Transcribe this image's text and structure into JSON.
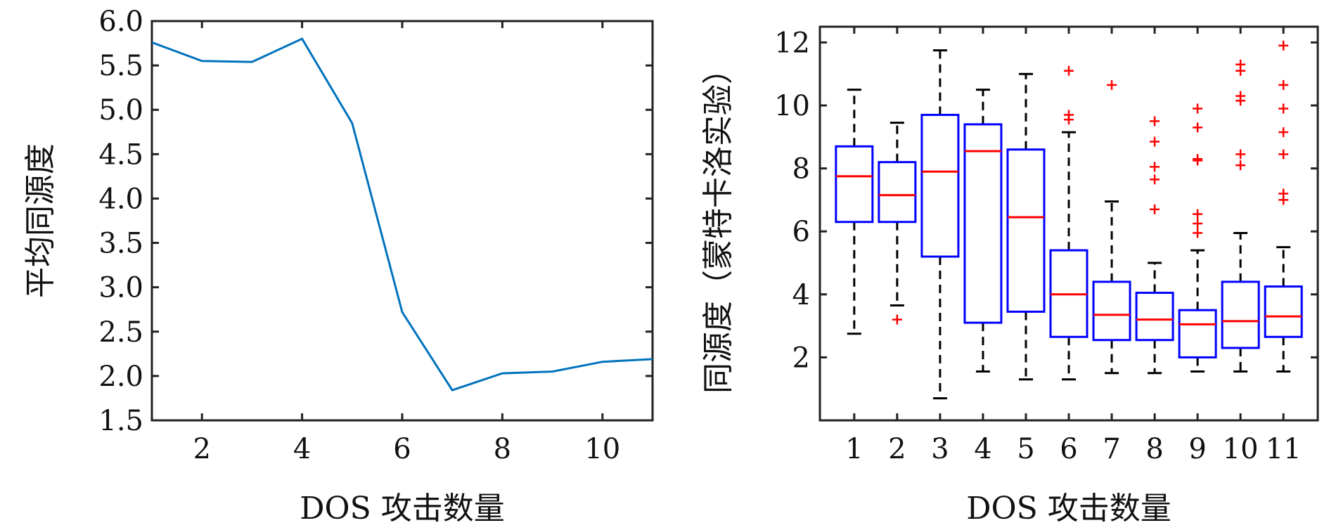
{
  "chart_data": [
    {
      "type": "line",
      "xlabel": "DOS 攻击数量",
      "ylabel": "平均同源度",
      "xlim": [
        1,
        11
      ],
      "ylim": [
        1.5,
        6.0
      ],
      "xticks": [
        2,
        4,
        6,
        8,
        10
      ],
      "yticks": [
        "1.5",
        "2.0",
        "2.5",
        "3.0",
        "3.5",
        "4.0",
        "4.5",
        "5.0",
        "5.5",
        "6.0"
      ],
      "grid": false,
      "line_color": "#0072BD",
      "x": [
        1,
        2,
        3,
        4,
        5,
        6,
        7,
        8,
        9,
        10,
        11
      ],
      "y": [
        5.76,
        5.55,
        5.54,
        5.8,
        4.85,
        2.72,
        1.84,
        2.03,
        2.05,
        2.16,
        2.19
      ]
    },
    {
      "type": "box",
      "xlabel": "DOS 攻击数量",
      "ylabel": "同源度（蒙特卡洛实验）",
      "ylim": [
        0,
        12.5
      ],
      "yticks": [
        2,
        4,
        6,
        8,
        10,
        12
      ],
      "categories": [
        "1",
        "2",
        "3",
        "4",
        "5",
        "6",
        "7",
        "8",
        "9",
        "10",
        "11"
      ],
      "box_color": "#0000FF",
      "median_color": "#FF0000",
      "outlier_color": "#FF0000",
      "boxes": [
        {
          "whisker_low": 2.75,
          "q1": 6.3,
          "median": 7.75,
          "q3": 8.7,
          "whisker_high": 10.5,
          "outliers": []
        },
        {
          "whisker_low": 3.65,
          "q1": 6.3,
          "median": 7.15,
          "q3": 8.2,
          "whisker_high": 9.45,
          "outliers": [
            3.2
          ]
        },
        {
          "whisker_low": 0.7,
          "q1": 5.2,
          "median": 7.9,
          "q3": 9.7,
          "whisker_high": 11.75,
          "outliers": []
        },
        {
          "whisker_low": 1.55,
          "q1": 3.1,
          "median": 8.55,
          "q3": 9.4,
          "whisker_high": 10.5,
          "outliers": []
        },
        {
          "whisker_low": 1.3,
          "q1": 3.45,
          "median": 6.45,
          "q3": 8.6,
          "whisker_high": 11.0,
          "outliers": []
        },
        {
          "whisker_low": 1.3,
          "q1": 2.65,
          "median": 4.0,
          "q3": 5.4,
          "whisker_high": 9.15,
          "outliers": [
            9.55,
            9.7,
            11.1
          ]
        },
        {
          "whisker_low": 1.5,
          "q1": 2.55,
          "median": 3.35,
          "q3": 4.4,
          "whisker_high": 6.95,
          "outliers": [
            10.65
          ]
        },
        {
          "whisker_low": 1.5,
          "q1": 2.55,
          "median": 3.2,
          "q3": 4.05,
          "whisker_high": 5.0,
          "outliers": [
            6.7,
            7.65,
            8.05,
            8.85,
            9.5
          ]
        },
        {
          "whisker_low": 1.55,
          "q1": 2.0,
          "median": 3.05,
          "q3": 3.5,
          "whisker_high": 5.4,
          "outliers": [
            5.95,
            6.25,
            6.55,
            8.25,
            8.3,
            9.3,
            9.9
          ]
        },
        {
          "whisker_low": 1.55,
          "q1": 2.3,
          "median": 3.15,
          "q3": 4.4,
          "whisker_high": 5.95,
          "outliers": [
            8.1,
            8.45,
            10.15,
            10.3,
            11.1,
            11.3
          ]
        },
        {
          "whisker_low": 1.55,
          "q1": 2.65,
          "median": 3.3,
          "q3": 4.25,
          "whisker_high": 5.5,
          "outliers": [
            7.0,
            7.2,
            8.45,
            9.15,
            9.9,
            10.65,
            11.9
          ]
        }
      ]
    }
  ]
}
